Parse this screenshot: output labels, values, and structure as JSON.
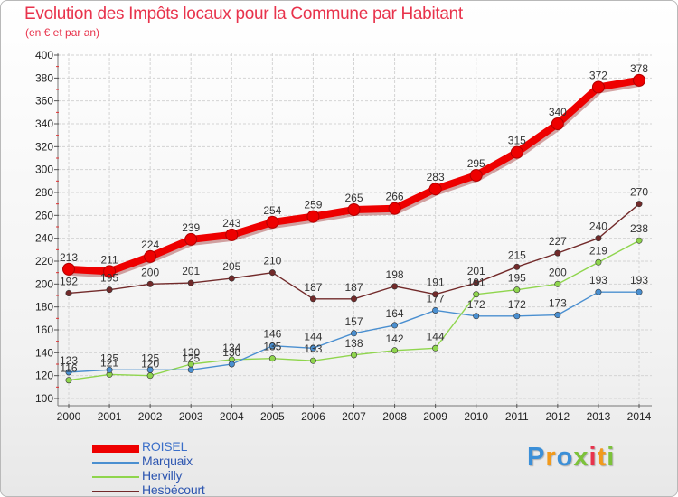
{
  "title": "Evolution des Impôts locaux pour la Commune par Habitant",
  "subtitle": "(en € et par an)",
  "brand": {
    "letters": [
      {
        "ch": "P",
        "color": "#3b8fd8"
      },
      {
        "ch": "r",
        "color": "#f19a1d"
      },
      {
        "ch": "o",
        "color": "#3b8fd8"
      },
      {
        "ch": "x",
        "color": "#7cc23a"
      },
      {
        "ch": "i",
        "color": "#e8334c"
      },
      {
        "ch": "t",
        "color": "#f19a1d"
      },
      {
        "ch": "i",
        "color": "#7cc23a"
      }
    ]
  },
  "chart_data": {
    "type": "line",
    "title": "Evolution des Impôts locaux pour la Commune par Habitant",
    "subtitle": "(en € et par an)",
    "xlabel": "",
    "ylabel": "",
    "categories": [
      "2000",
      "2001",
      "2002",
      "2003",
      "2004",
      "2005",
      "2006",
      "2007",
      "2008",
      "2009",
      "2010",
      "2011",
      "2012",
      "2013",
      "2014"
    ],
    "ylim": [
      100,
      400
    ],
    "yticks": [
      100,
      120,
      140,
      160,
      180,
      200,
      220,
      240,
      260,
      280,
      300,
      320,
      340,
      360,
      380,
      400
    ],
    "grid": "horizontal",
    "legend_position": "bottom-left",
    "series": [
      {
        "name": "ROISEL",
        "color": "#ee0000",
        "values": [
          213,
          211,
          224,
          239,
          243,
          254,
          259,
          265,
          266,
          283,
          295,
          315,
          340,
          372,
          378
        ],
        "labels": [
          "213",
          "211",
          "224",
          "239",
          "243",
          "254",
          "259",
          "265",
          "266",
          "283",
          "295",
          "315",
          "340",
          "372",
          "378"
        ]
      },
      {
        "name": "Marquaix",
        "color": "#4a8fd0",
        "values": [
          123,
          125,
          125,
          125,
          130,
          146,
          144,
          157,
          164,
          177,
          172,
          172,
          173,
          193,
          193
        ],
        "labels": [
          "123",
          "125",
          "125",
          "125",
          "130",
          "146",
          "144",
          "157",
          "164",
          "177",
          "172",
          "172",
          "173",
          "193",
          "193"
        ]
      },
      {
        "name": "Hervilly",
        "color": "#8fd54d",
        "values": [
          116,
          121,
          120,
          130,
          134,
          135,
          133,
          138,
          142,
          144,
          191,
          195,
          200,
          219,
          238
        ],
        "labels": [
          "116",
          "121",
          "120",
          "130",
          "134",
          "135",
          "133",
          "138",
          "142",
          "144",
          "191",
          "195",
          "200",
          "219",
          "238"
        ]
      },
      {
        "name": "Hesbécourt",
        "color": "#722a2a",
        "values": [
          192,
          195,
          200,
          201,
          205,
          210,
          187,
          187,
          198,
          191,
          201,
          215,
          227,
          240,
          270
        ],
        "labels": [
          "192",
          "195",
          "200",
          "201",
          "205",
          "210",
          "187",
          "187",
          "198",
          "191",
          "201",
          "215",
          "227",
          "240",
          "270"
        ]
      }
    ]
  }
}
